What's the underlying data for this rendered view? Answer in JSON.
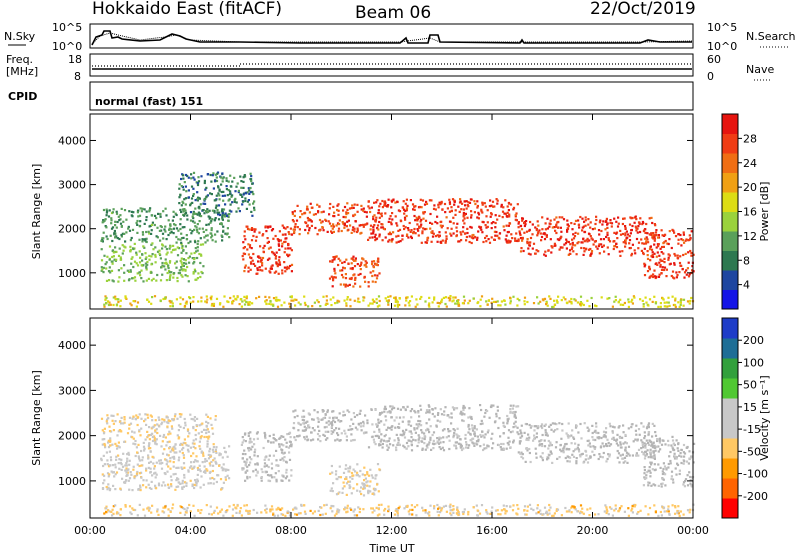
{
  "header": {
    "station": "Hokkaido East (fitACF)",
    "beam": "Beam 06",
    "date": "22/Oct/2019"
  },
  "status_panels": {
    "nsky_label": "N.Sky",
    "nsky_ticks": [
      "10^5",
      "10^0"
    ],
    "nsearch_label": "N.Search",
    "nsearch_ticks": [
      "10^5",
      "10^0"
    ],
    "freq_label_1": "Freq.",
    "freq_label_2": "[MHz]",
    "freq_ticks": [
      "18",
      "8"
    ],
    "nave_label": "Nave",
    "nave_ticks": [
      "60",
      "0"
    ],
    "cpid_label": "CPID",
    "cpid_value": "normal (fast) 151"
  },
  "colors": {
    "power": [
      "#1414e6",
      "#1e46a0",
      "#2d7850",
      "#5aa05a",
      "#9ad23c",
      "#dcdc14",
      "#f0a014",
      "#f06e14",
      "#f03c14",
      "#e6140f"
    ],
    "velocity": [
      "#ff0000",
      "#ff6400",
      "#ff9a00",
      "#ffc864",
      "#c8c8c8",
      "#c8c8c8",
      "#50c832",
      "#32a03c",
      "#1e6e96",
      "#1e3cc8"
    ],
    "ground_scatter": "#b4b4b4"
  },
  "chart_data": [
    {
      "type": "heatmap",
      "panel": "power",
      "ylabel": "Slant Range [km]",
      "colorbar_label": "Power [dB]",
      "colorbar_ticks": [
        "28",
        "24",
        "20",
        "16",
        "12",
        "8",
        "4"
      ],
      "colorbar_range": [
        0,
        32
      ],
      "x_ticks": [
        "00:00",
        "04:00",
        "08:00",
        "12:00",
        "16:00",
        "20:00",
        "00:00"
      ],
      "xlim_hours": [
        0,
        24
      ],
      "y_ticks": [
        "1000",
        "2000",
        "3000",
        "4000"
      ],
      "ylim": [
        180,
        4600
      ],
      "bands": [
        {
          "t": [
            0.4,
            4.5
          ],
          "r": [
            820,
            1700
          ],
          "value": 13
        },
        {
          "t": [
            0.4,
            5.5
          ],
          "r": [
            1700,
            2500
          ],
          "value": 10
        },
        {
          "t": [
            3.5,
            6.5
          ],
          "r": [
            2300,
            3300
          ],
          "value": 8
        },
        {
          "t": [
            6.0,
            8.0
          ],
          "r": [
            1000,
            2100
          ],
          "value": 28
        },
        {
          "t": [
            8.0,
            11.0
          ],
          "r": [
            1900,
            2600
          ],
          "value": 27
        },
        {
          "t": [
            9.5,
            11.5
          ],
          "r": [
            700,
            1400
          ],
          "value": 27
        },
        {
          "t": [
            11.0,
            17.0
          ],
          "r": [
            1700,
            2700
          ],
          "value": 28
        },
        {
          "t": [
            17.0,
            22.5
          ],
          "r": [
            1400,
            2300
          ],
          "value": 28
        },
        {
          "t": [
            22.0,
            24.0
          ],
          "r": [
            900,
            2000
          ],
          "value": 28
        },
        {
          "t": [
            0.5,
            24.0
          ],
          "r": [
            250,
            500
          ],
          "value": 18
        }
      ]
    },
    {
      "type": "heatmap",
      "panel": "velocity",
      "ylabel": "Slant Range [km]",
      "xlabel": "Time UT",
      "colorbar_label": "Velocity [m s⁻¹]",
      "colorbar_ticks": [
        "200",
        "100",
        "50",
        "15",
        "-15",
        "-50",
        "-100",
        "-200"
      ],
      "colorbar_range": [
        -250,
        250
      ],
      "x_ticks": [
        "00:00",
        "04:00",
        "08:00",
        "12:00",
        "16:00",
        "20:00",
        "00:00"
      ],
      "xlim_hours": [
        0,
        24
      ],
      "y_ticks": [
        "1000",
        "2000",
        "3000",
        "4000"
      ],
      "ylim": [
        180,
        4600
      ],
      "bands": [
        {
          "t": [
            0.4,
            5.5
          ],
          "r": [
            820,
            1800
          ],
          "value": -20
        },
        {
          "t": [
            0.4,
            5.0
          ],
          "r": [
            1800,
            2500
          ],
          "value": -40
        },
        {
          "t": [
            6.0,
            8.0
          ],
          "r": [
            1000,
            2100
          ],
          "value": 0
        },
        {
          "t": [
            8.0,
            11.0
          ],
          "r": [
            1900,
            2600
          ],
          "value": 0
        },
        {
          "t": [
            9.5,
            11.5
          ],
          "r": [
            700,
            1400
          ],
          "value": -30
        },
        {
          "t": [
            11.0,
            17.0
          ],
          "r": [
            1700,
            2700
          ],
          "value": 0
        },
        {
          "t": [
            17.0,
            22.5
          ],
          "r": [
            1400,
            2300
          ],
          "value": 0
        },
        {
          "t": [
            22.0,
            24.0
          ],
          "r": [
            900,
            2000
          ],
          "value": 0
        },
        {
          "t": [
            0.5,
            24.0
          ],
          "r": [
            250,
            500
          ],
          "value": -60
        }
      ]
    }
  ]
}
